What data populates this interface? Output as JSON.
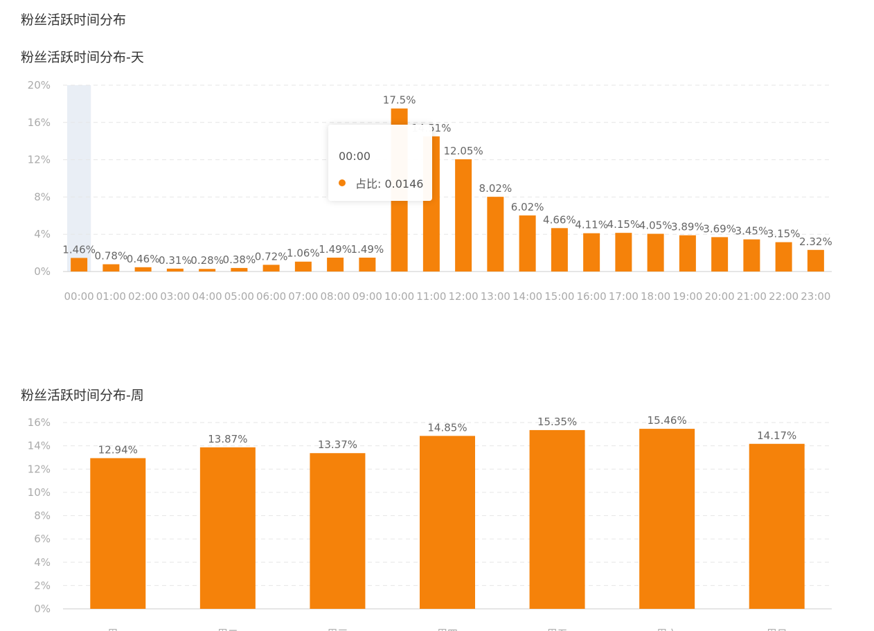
{
  "page": {
    "title": "粉丝活跃时间分布"
  },
  "colors": {
    "bar": "#f5820a",
    "hover_band": "#e9eef5"
  },
  "chart_data": [
    {
      "type": "bar",
      "title": "粉丝活跃时间分布-天",
      "categories": [
        "00:00",
        "01:00",
        "02:00",
        "03:00",
        "04:00",
        "05:00",
        "06:00",
        "07:00",
        "08:00",
        "09:00",
        "10:00",
        "11:00",
        "12:00",
        "13:00",
        "14:00",
        "15:00",
        "16:00",
        "17:00",
        "18:00",
        "19:00",
        "20:00",
        "21:00",
        "22:00",
        "23:00"
      ],
      "values": [
        1.46,
        0.78,
        0.46,
        0.31,
        0.28,
        0.38,
        0.72,
        1.06,
        1.49,
        1.49,
        17.5,
        14.51,
        12.05,
        8.02,
        6.02,
        4.66,
        4.11,
        4.15,
        4.05,
        3.89,
        3.69,
        3.45,
        3.15,
        2.32
      ],
      "value_labels": [
        "1.46%",
        "0.78%",
        "0.46%",
        "0.31%",
        "0.28%",
        "0.38%",
        "0.72%",
        "1.06%",
        "1.49%",
        "1.49%",
        "17.5%",
        "14.51%",
        "12.05%",
        "8.02%",
        "6.02%",
        "4.66%",
        "4.11%",
        "4.15%",
        "4.05%",
        "3.89%",
        "3.69%",
        "3.45%",
        "3.15%",
        "2.32%"
      ],
      "yticks": [
        "0%",
        "4%",
        "8%",
        "12%",
        "16%",
        "20%"
      ],
      "ylim": [
        0,
        20
      ],
      "grid": true,
      "highlighted_category": "00:00",
      "tooltip": {
        "title": "00:00",
        "label": "占比: 0.0146"
      }
    },
    {
      "type": "bar",
      "title": "粉丝活跃时间分布-周",
      "categories": [
        "周一",
        "周二",
        "周三",
        "周四",
        "周五",
        "周六",
        "周日"
      ],
      "values": [
        12.94,
        13.87,
        13.37,
        14.85,
        15.35,
        15.46,
        14.17
      ],
      "value_labels": [
        "12.94%",
        "13.87%",
        "13.37%",
        "14.85%",
        "15.35%",
        "15.46%",
        "14.17%"
      ],
      "yticks": [
        "0%",
        "2%",
        "4%",
        "6%",
        "8%",
        "10%",
        "12%",
        "14%",
        "16%"
      ],
      "ylim": [
        0,
        16
      ],
      "grid": true
    }
  ]
}
